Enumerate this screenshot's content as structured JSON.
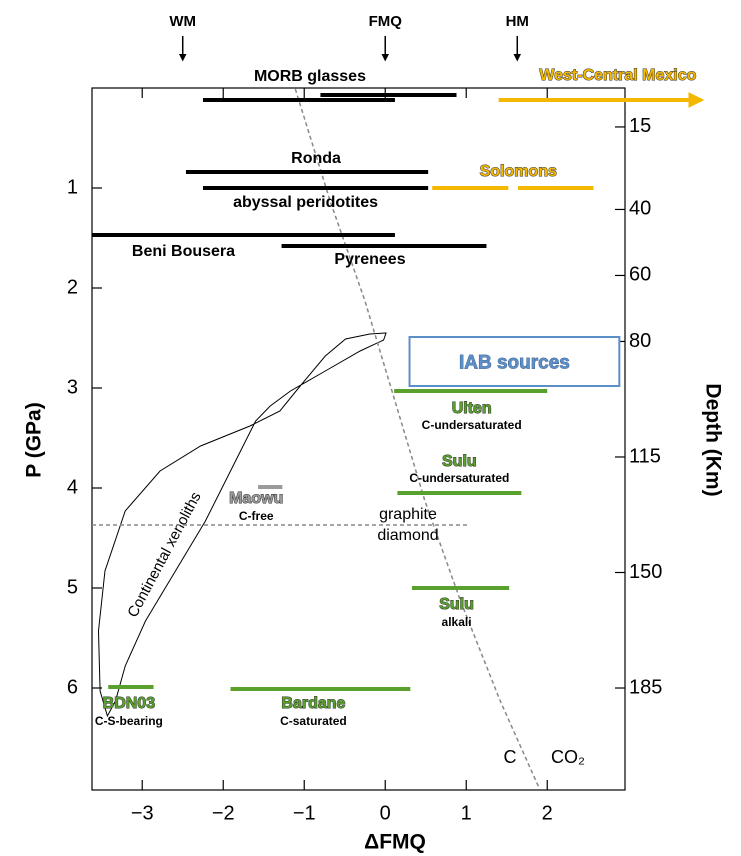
{
  "chart_data": {
    "type": "range",
    "x_label": "ΔFMQ",
    "y_label": "P (GPa)",
    "y2_label": "Depth (Km)",
    "xlim": [
      -3.62,
      2.96
    ],
    "ylim": [
      0,
      7.02
    ],
    "y2lim": [
      3.2,
      215.9
    ],
    "xticks": [
      {
        "value": -3,
        "label": "−3"
      },
      {
        "value": -2,
        "label": "−2"
      },
      {
        "value": -1,
        "label": "−1"
      },
      0,
      1,
      2
    ],
    "yticks": [
      1,
      2,
      3,
      4,
      5,
      6
    ],
    "y2ticks": [
      15,
      40,
      60,
      80,
      115,
      150,
      185
    ],
    "top_markers": [
      {
        "label": "WM",
        "x": -2.5
      },
      {
        "label": "FMQ",
        "x": 0
      },
      {
        "label": "HM",
        "x": 1.63
      }
    ],
    "ranges": [
      {
        "label": "MORB glasses",
        "color": "#000000",
        "x": [
          -2.25,
          0.12
        ],
        "p": 0.12
      },
      {
        "color": "#000000",
        "x": [
          -0.8,
          0.88
        ],
        "p": 0.07
      },
      {
        "label": "West-Central Mexico",
        "color": "#f5b800",
        "x": [
          1.4,
          3.9
        ],
        "p": 0.12
      },
      {
        "label": "Ronda",
        "color": "#000000",
        "x": [
          -2.46,
          0.53
        ],
        "p": 0.84
      },
      {
        "label": "abyssal peridotites",
        "color": "#000000",
        "x": [
          -2.25,
          0.53
        ],
        "p": 1.0
      },
      {
        "label": "Solomons",
        "color": "#f5b800",
        "x": [
          0.58,
          1.52
        ],
        "p": 1.0
      },
      {
        "color": "#f5b800",
        "x": [
          1.64,
          2.57
        ],
        "p": 1.0
      },
      {
        "label": "Beni Bousera",
        "color": "#000000",
        "x": [
          -3.62,
          0.12
        ],
        "p": 1.47
      },
      {
        "label": "Pyrenees",
        "color": "#000000",
        "x": [
          -1.28,
          1.25
        ],
        "p": 1.58
      },
      {
        "label": "Ulten",
        "sublabel": "C-undersaturated",
        "color": "#5aa02c",
        "x": [
          0.11,
          2.0
        ],
        "p": 3.03
      },
      {
        "label": "Sulu",
        "sublabel": "C-undersaturated",
        "color": "#5aa02c",
        "x": [
          0.15,
          1.68
        ],
        "p": 4.05
      },
      {
        "label": "Maowu",
        "sublabel": "C-free",
        "color": "#9a9a9a",
        "x": [
          -1.57,
          -1.27
        ],
        "p": 3.99
      },
      {
        "label": "Sulu",
        "sublabel": "alkali",
        "color": "#5aa02c",
        "x": [
          0.33,
          1.53
        ],
        "p": 5.0
      },
      {
        "label": "Bardane",
        "sublabel": "C-saturated",
        "color": "#5aa02c",
        "x": [
          -1.91,
          0.31
        ],
        "p": 6.01
      },
      {
        "label": "BDN03",
        "sublabel": "C-S-bearing",
        "color": "#5aa02c",
        "x": [
          -3.42,
          -2.86
        ],
        "p": 5.99
      }
    ],
    "iab_box": {
      "label": "IAB sources",
      "color": "#5b8fc7",
      "x": [
        0.3,
        2.89
      ],
      "p": [
        2.49,
        2.98
      ]
    },
    "fmq_curve": {
      "labels": [
        "C",
        "CO₂"
      ],
      "x": [
        -1.11,
        -0.68,
        -0.25,
        0.12,
        0.49,
        0.93,
        1.42,
        1.9
      ],
      "p": [
        0.01,
        1.13,
        2.13,
        3.13,
        4.13,
        5.13,
        6.13,
        7.0
      ]
    },
    "phase_boundary": {
      "labels": [
        "graphite",
        "diamond"
      ],
      "p": 4.37
    },
    "xenoliths": {
      "label": "Continental xenoliths",
      "x": [
        0.01,
        -0.19,
        -0.49,
        -0.74,
        -1.05,
        -1.3,
        -1.67,
        -2.28,
        -2.78,
        -3.21,
        -3.46,
        -3.54,
        -3.52,
        -3.43,
        -3.33,
        -3.21,
        -2.96,
        -2.59,
        -2.22,
        -1.91,
        -1.6,
        -1.42,
        -1.17,
        -0.74,
        -0.31,
        -0.02
      ],
      "p": [
        2.45,
        2.46,
        2.51,
        2.68,
        2.98,
        3.23,
        3.38,
        3.58,
        3.83,
        4.23,
        4.83,
        5.43,
        6.03,
        6.28,
        6.13,
        5.78,
        5.33,
        4.83,
        4.33,
        3.83,
        3.33,
        3.18,
        3.03,
        2.83,
        2.63,
        2.52
      ]
    }
  }
}
